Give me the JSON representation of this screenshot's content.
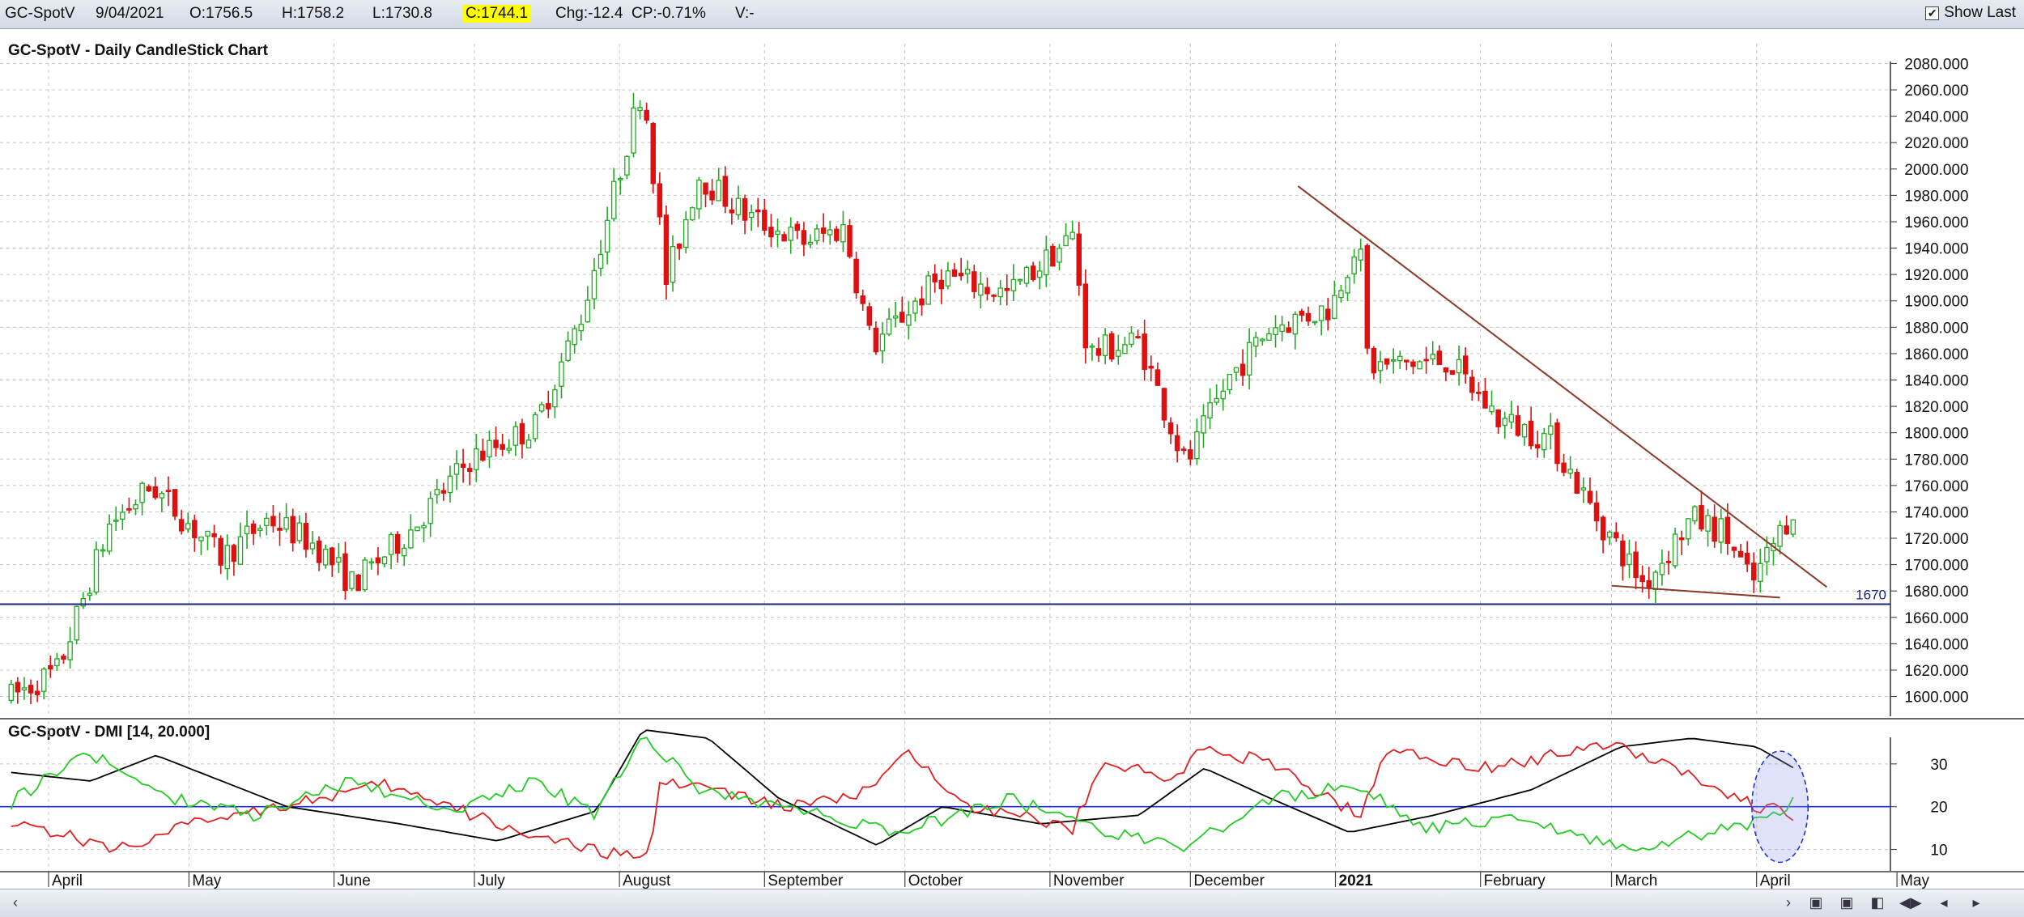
{
  "header": {
    "symbol": "GC-SpotV",
    "date": "9/04/2021",
    "open": "O:1756.5",
    "high": "H:1758.2",
    "low": "L:1730.8",
    "close": "C:1744.1",
    "change": "Chg:-12.4",
    "change_pct": "CP:-0.71%",
    "volume": "V:-",
    "show_last_label": "Show Last",
    "show_last_checked": true
  },
  "chart_data": [
    {
      "type": "candlestick",
      "title": "GC-SpotV - Daily CandleStick Chart",
      "ylim": [
        1585,
        2095
      ],
      "y_ticks": [
        "1600.000",
        "1620.000",
        "1640.000",
        "1660.000",
        "1680.000",
        "1700.000",
        "1720.000",
        "1740.000",
        "1760.000",
        "1780.000",
        "1800.000",
        "1820.000",
        "1840.000",
        "1860.000",
        "1880.000",
        "1900.000",
        "1920.000",
        "1940.000",
        "1960.000",
        "1980.000",
        "2000.000",
        "2020.000",
        "2040.000",
        "2060.000",
        "2080.000"
      ],
      "x_labels": [
        "April",
        "May",
        "June",
        "July",
        "August",
        "September",
        "October",
        "November",
        "December",
        "2021",
        "February",
        "March",
        "April",
        "May"
      ],
      "horizontal_line": {
        "value": 1670,
        "label": "1670"
      },
      "trendlines": [
        {
          "from": [
            "2020-12-24",
            1987
          ],
          "to": [
            "2021-04-16",
            1683
          ],
          "color": "#8b3a2a"
        },
        {
          "from": [
            "2021-03-01",
            1684
          ],
          "to": [
            "2021-04-06",
            1675
          ],
          "color": "#8b3a2a"
        }
      ],
      "series_anchor_path": [
        [
          "2020-03-24",
          1600
        ],
        [
          "2020-04-03",
          1620
        ],
        [
          "2020-04-14",
          1730
        ],
        [
          "2020-04-23",
          1760
        ],
        [
          "2020-05-08",
          1705
        ],
        [
          "2020-05-18",
          1735
        ],
        [
          "2020-05-28",
          1715
        ],
        [
          "2020-06-05",
          1685
        ],
        [
          "2020-06-17",
          1725
        ],
        [
          "2020-06-30",
          1780
        ],
        [
          "2020-07-14",
          1805
        ],
        [
          "2020-07-24",
          1890
        ],
        [
          "2020-08-06",
          2065
        ],
        [
          "2020-08-11",
          1915
        ],
        [
          "2020-08-18",
          1995
        ],
        [
          "2020-08-28",
          1965
        ],
        [
          "2020-09-09",
          1945
        ],
        [
          "2020-09-18",
          1955
        ],
        [
          "2020-09-24",
          1865
        ],
        [
          "2020-10-09",
          1920
        ],
        [
          "2020-10-23",
          1905
        ],
        [
          "2020-11-06",
          1950
        ],
        [
          "2020-11-09",
          1860
        ],
        [
          "2020-11-20",
          1870
        ],
        [
          "2020-11-30",
          1775
        ],
        [
          "2020-12-09",
          1840
        ],
        [
          "2020-12-18",
          1880
        ],
        [
          "2020-12-31",
          1895
        ],
        [
          "2021-01-06",
          1950
        ],
        [
          "2021-01-08",
          1850
        ],
        [
          "2021-01-25",
          1855
        ],
        [
          "2021-02-05",
          1810
        ],
        [
          "2021-02-16",
          1795
        ],
        [
          "2021-02-26",
          1735
        ],
        [
          "2021-03-08",
          1685
        ],
        [
          "2021-03-18",
          1735
        ],
        [
          "2021-03-25",
          1725
        ],
        [
          "2021-03-31",
          1685
        ],
        [
          "2021-04-09",
          1744
        ]
      ]
    },
    {
      "type": "line",
      "title": "GC-SpotV - DMI [14, 20.000]",
      "ylim": [
        5,
        40
      ],
      "y_ticks": [
        "10",
        "20",
        "30"
      ],
      "reference_line": 20,
      "highlight_ellipse": {
        "x_from": "2021-03-31",
        "x_to": "2021-04-12",
        "y_from": 7,
        "y_to": 33
      },
      "series_anchors": [
        {
          "color": "#000000",
          "points": [
            [
              "2020-03-24",
              28
            ],
            [
              "2020-04-10",
              26
            ],
            [
              "2020-04-24",
              32
            ],
            [
              "2020-05-22",
              20
            ],
            [
              "2020-06-15",
              16
            ],
            [
              "2020-07-06",
              12
            ],
            [
              "2020-07-27",
              19
            ],
            [
              "2020-08-06",
              38
            ],
            [
              "2020-08-20",
              36
            ],
            [
              "2020-09-04",
              22
            ],
            [
              "2020-09-25",
              11
            ],
            [
              "2020-10-09",
              20
            ],
            [
              "2020-10-30",
              16
            ],
            [
              "2020-11-20",
              18
            ],
            [
              "2020-12-04",
              29
            ],
            [
              "2020-12-18",
              22
            ],
            [
              "2021-01-04",
              14
            ],
            [
              "2021-01-22",
              18
            ],
            [
              "2021-02-12",
              24
            ],
            [
              "2021-03-03",
              34
            ],
            [
              "2021-03-18",
              36
            ],
            [
              "2021-04-01",
              34
            ],
            [
              "2021-04-09",
              29
            ]
          ]
        },
        {
          "color": "#e02020",
          "points": [
            [
              "2020-03-24",
              17
            ],
            [
              "2020-04-15",
              10
            ],
            [
              "2020-05-08",
              18
            ],
            [
              "2020-05-29",
              22
            ],
            [
              "2020-06-12",
              25
            ],
            [
              "2020-07-06",
              16
            ],
            [
              "2020-07-24",
              10
            ],
            [
              "2020-08-07",
              8
            ],
            [
              "2020-08-10",
              27
            ],
            [
              "2020-09-04",
              20
            ],
            [
              "2020-09-20",
              22
            ],
            [
              "2020-10-02",
              32
            ],
            [
              "2020-10-16",
              20
            ],
            [
              "2020-11-06",
              15
            ],
            [
              "2020-11-12",
              31
            ],
            [
              "2020-11-27",
              26
            ],
            [
              "2020-12-04",
              34
            ],
            [
              "2020-12-18",
              30
            ],
            [
              "2021-01-06",
              18
            ],
            [
              "2021-01-12",
              33
            ],
            [
              "2021-02-05",
              29
            ],
            [
              "2021-02-26",
              35
            ],
            [
              "2021-03-12",
              31
            ],
            [
              "2021-03-29",
              21
            ],
            [
              "2021-04-09",
              18
            ]
          ]
        },
        {
          "color": "#22cc22",
          "points": [
            [
              "2020-03-24",
              21
            ],
            [
              "2020-04-09",
              33
            ],
            [
              "2020-04-24",
              23
            ],
            [
              "2020-05-15",
              18
            ],
            [
              "2020-06-05",
              26
            ],
            [
              "2020-06-26",
              19
            ],
            [
              "2020-07-14",
              26
            ],
            [
              "2020-07-27",
              18
            ],
            [
              "2020-08-06",
              37
            ],
            [
              "2020-08-18",
              24
            ],
            [
              "2020-09-09",
              19
            ],
            [
              "2020-09-30",
              14
            ],
            [
              "2020-10-23",
              22
            ],
            [
              "2020-11-10",
              15
            ],
            [
              "2020-11-30",
              10
            ],
            [
              "2020-12-18",
              22
            ],
            [
              "2021-01-06",
              25
            ],
            [
              "2021-01-20",
              15
            ],
            [
              "2021-02-10",
              17
            ],
            [
              "2021-03-04",
              10
            ],
            [
              "2021-03-22",
              14
            ],
            [
              "2021-04-03",
              17
            ],
            [
              "2021-04-09",
              21
            ]
          ]
        }
      ]
    }
  ],
  "footer": {
    "nav_buttons": [
      "scroll-left-arrow",
      "scroll-right-arrow",
      "zoom-in-icon",
      "zoom-out-icon",
      "page-left-icon",
      "page-right-icon",
      "step-left-icon",
      "step-right-icon"
    ]
  }
}
